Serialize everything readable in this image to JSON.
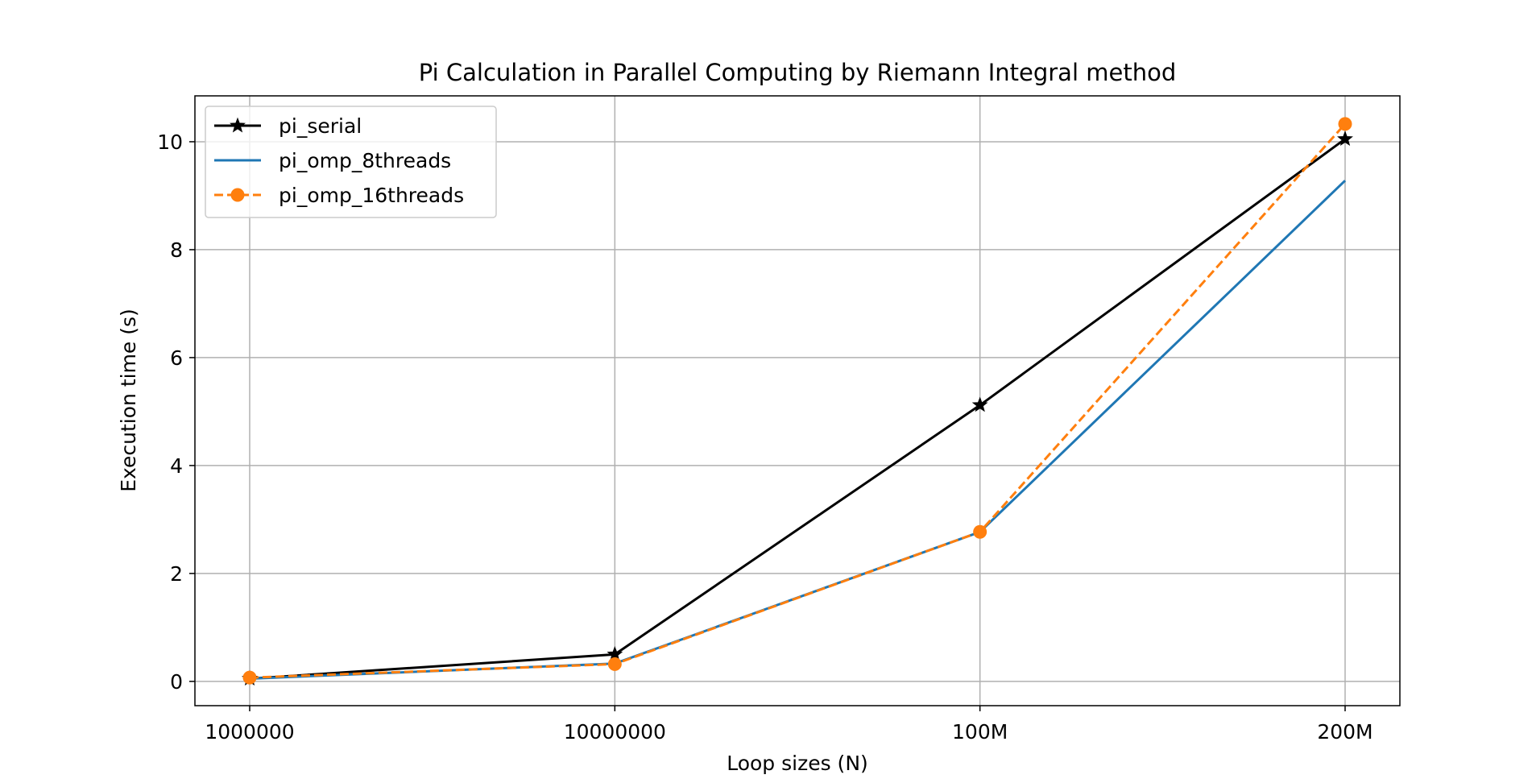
{
  "chart_data": {
    "type": "line",
    "title": "Pi Calculation in Parallel Computing by Riemann Integral method",
    "xlabel": "Loop sizes (N)",
    "ylabel": "Execution time (s)",
    "categories": [
      "1000000",
      "10000000",
      "100M",
      "200M"
    ],
    "ylim": [
      -0.45,
      10.85
    ],
    "yticks": [
      0,
      2,
      4,
      6,
      8,
      10
    ],
    "grid": true,
    "legend_position": "upper-left",
    "series": [
      {
        "name": "pi_serial",
        "values": [
          0.05,
          0.5,
          5.12,
          10.05
        ],
        "color": "#000000",
        "marker": "star",
        "linestyle": "solid"
      },
      {
        "name": "pi_omp_8threads",
        "values": [
          0.05,
          0.33,
          2.77,
          9.28
        ],
        "color": "#1f77b4",
        "marker": "none",
        "linestyle": "solid"
      },
      {
        "name": "pi_omp_16threads",
        "values": [
          0.07,
          0.32,
          2.77,
          10.33
        ],
        "color": "#ff7f0e",
        "marker": "circle",
        "linestyle": "dashed"
      }
    ]
  }
}
